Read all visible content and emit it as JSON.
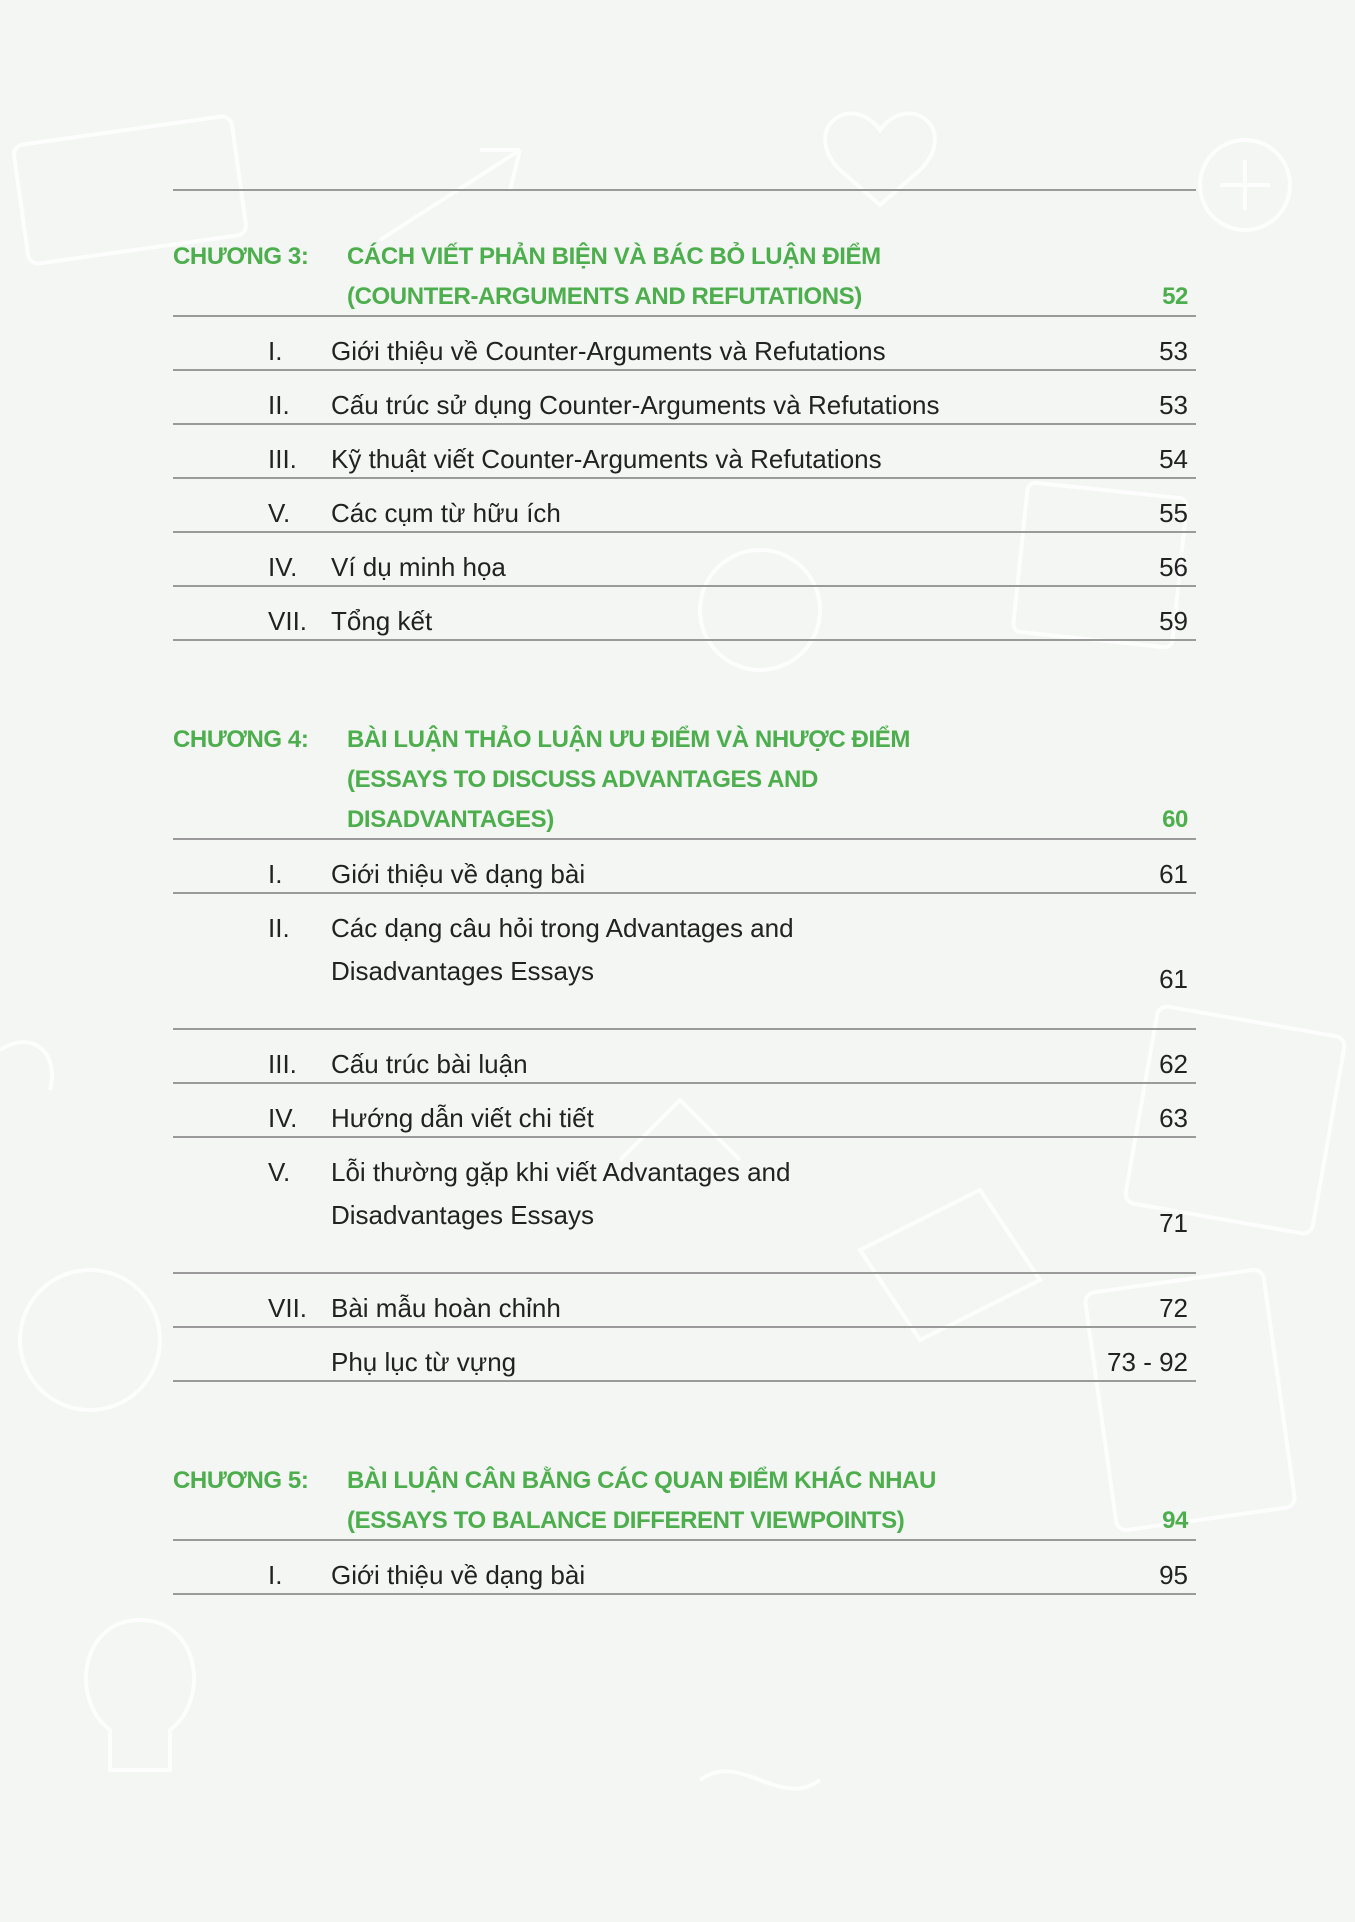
{
  "colors": {
    "accent": "#4cae4c",
    "background": "#f3f6f3",
    "rule": "#9a9a9a"
  },
  "chapters": [
    {
      "label": "CHƯƠNG 3:",
      "title_lines": [
        "CÁCH VIẾT PHẢN BIỆN VÀ BÁC BỎ LUẬN ĐIỂM",
        "(COUNTER-ARGUMENTS AND REFUTATIONS)"
      ],
      "page": "52",
      "items": [
        {
          "numeral": "I.",
          "lines": [
            "Giới thiệu về Counter-Arguments và Refutations"
          ],
          "page": "53"
        },
        {
          "numeral": "II.",
          "lines": [
            "Cấu trúc sử dụng Counter-Arguments và Refutations"
          ],
          "page": "53"
        },
        {
          "numeral": "III.",
          "lines": [
            "Kỹ thuật viết Counter-Arguments và Refutations"
          ],
          "page": "54"
        },
        {
          "numeral": "V.",
          "lines": [
            "Các cụm từ hữu ích"
          ],
          "page": "55"
        },
        {
          "numeral": "IV.",
          "lines": [
            "Ví dụ minh họa"
          ],
          "page": "56"
        },
        {
          "numeral": "VII.",
          "lines": [
            "Tổng kết"
          ],
          "page": "59"
        }
      ]
    },
    {
      "label": "CHƯƠNG 4:",
      "title_lines": [
        "BÀI LUẬN THẢO LUẬN ƯU ĐIỂM VÀ NHƯỢC ĐIỂM",
        "(ESSAYS TO DISCUSS ADVANTAGES AND",
        "DISADVANTAGES)"
      ],
      "page": "60",
      "items": [
        {
          "numeral": "I.",
          "lines": [
            "Giới thiệu về dạng bài"
          ],
          "page": "61"
        },
        {
          "numeral": "II.",
          "lines": [
            "Các dạng câu hỏi trong Advantages and",
            "Disadvantages Essays"
          ],
          "page": "61"
        },
        {
          "numeral": "III.",
          "lines": [
            "Cấu trúc bài luận"
          ],
          "page": "62"
        },
        {
          "numeral": "IV.",
          "lines": [
            "Hướng dẫn viết chi tiết"
          ],
          "page": "63"
        },
        {
          "numeral": "V.",
          "lines": [
            "Lỗi thường gặp khi viết Advantages and",
            "Disadvantages Essays"
          ],
          "page": "71"
        },
        {
          "numeral": "VII.",
          "lines": [
            "Bài mẫu hoàn chỉnh"
          ],
          "page": "72"
        },
        {
          "numeral": "",
          "lines": [
            "Phụ lục từ vựng"
          ],
          "page": "73 - 92"
        }
      ]
    },
    {
      "label": "CHƯƠNG 5:",
      "title_lines": [
        "BÀI LUẬN CÂN BẰNG CÁC QUAN ĐIỂM KHÁC NHAU",
        "(ESSAYS TO BALANCE DIFFERENT VIEWPOINTS)"
      ],
      "page": "94",
      "items": [
        {
          "numeral": "I.",
          "lines": [
            "Giới thiệu về dạng bài"
          ],
          "page": "95"
        }
      ]
    }
  ]
}
